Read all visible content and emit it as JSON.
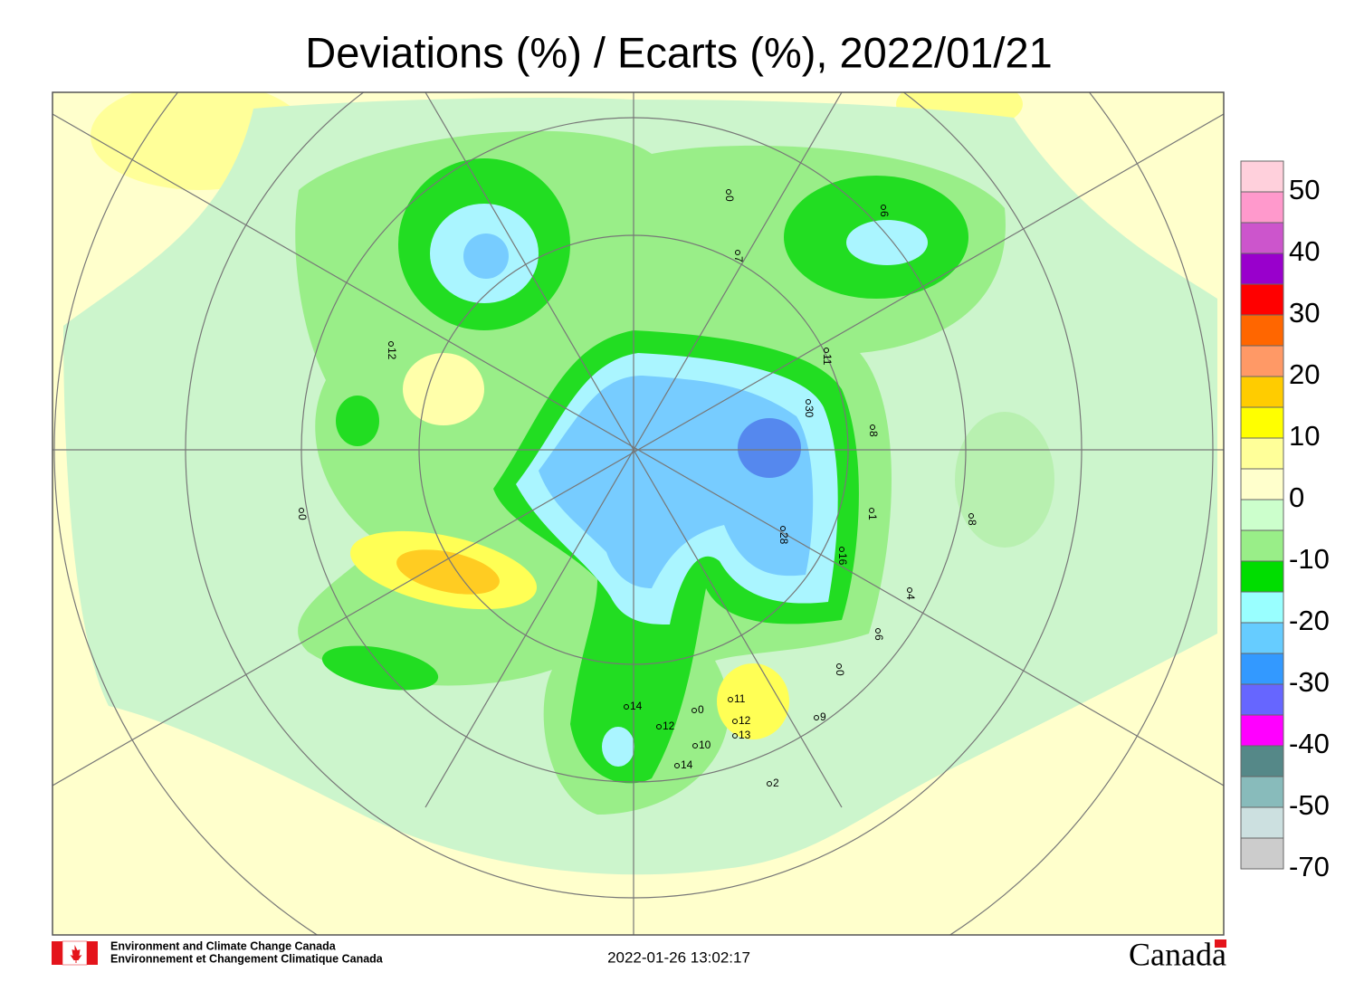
{
  "header": {
    "title": "Deviations (%) / Ecarts (%), 2022/01/21"
  },
  "scale": {
    "ticks": [
      50,
      40,
      30,
      20,
      10,
      0,
      -10,
      -20,
      -30,
      -40,
      -50,
      -70
    ],
    "colors": [
      "#ffd0dc",
      "#ff99cc",
      "#cc55cc",
      "#9900cc",
      "#ff0000",
      "#ff6600",
      "#ff9966",
      "#ffcc00",
      "#ffff00",
      "#ffff99",
      "#ffffcc",
      "#ccffcc",
      "#99ee88",
      "#00dd00",
      "#99ffff",
      "#66ccff",
      "#3399ff",
      "#6666ff",
      "#ff00ff",
      "#558888",
      "#88bbbb",
      "#cce0e0",
      "#cccccc"
    ]
  },
  "station_labels": [
    "12",
    "11",
    "30",
    "8",
    "1",
    "28",
    "16",
    "4",
    "6",
    "0",
    "8",
    "0",
    "14",
    "12",
    "10",
    "14",
    "11",
    "12",
    "13",
    "0",
    "2",
    "9",
    "0",
    "7",
    "6"
  ],
  "footer": {
    "agency_en": "Environment and Climate Change Canada",
    "agency_fr": "Environnement et Changement Climatique Canada",
    "timestamp": "2022-01-26 13:02:17",
    "wordmark": "Canada"
  }
}
